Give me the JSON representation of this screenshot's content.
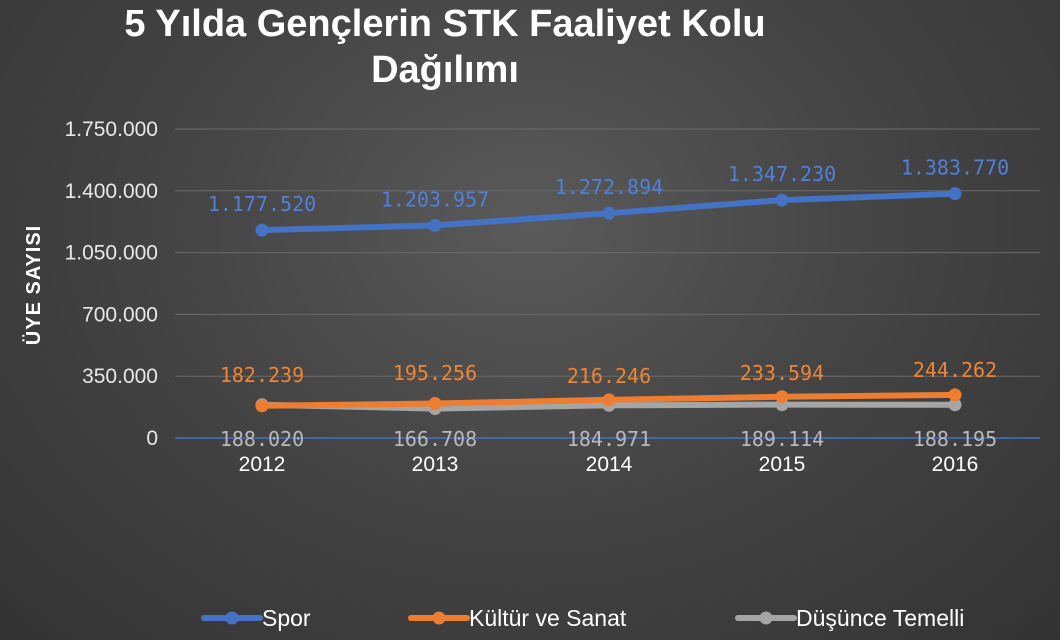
{
  "chart_data": {
    "type": "line",
    "title": "5 Yılda Gençlerin STK Faaliyet Kolu Dağılımı",
    "title_lines": [
      "5 Yılda Gençlerin STK Faaliyet Kolu",
      "Dağılımı"
    ],
    "xlabel": "",
    "ylabel": "ÜYE SAYISI",
    "categories": [
      "2012",
      "2013",
      "2014",
      "2015",
      "2016"
    ],
    "ylim": [
      0,
      1750000
    ],
    "yticks": [
      0,
      350000,
      700000,
      1050000,
      1400000,
      1750000
    ],
    "ytick_labels": [
      "0",
      "350.000",
      "700.000",
      "1.050.000",
      "1.400.000",
      "1.750.000"
    ],
    "grid": true,
    "legend_position": "bottom",
    "series": [
      {
        "name": "Spor",
        "color": "#4472c4",
        "values": [
          1177520,
          1203957,
          1272894,
          1347230,
          1383770
        ],
        "labels": [
          "1.177.520",
          "1.203.957",
          "1.272.894",
          "1.347.230",
          "1.383.770"
        ]
      },
      {
        "name": "Kültür ve Sanat",
        "color": "#ed7d31",
        "values": [
          182239,
          195256,
          216246,
          233594,
          244262
        ],
        "labels": [
          "182.239",
          "195.256",
          "216.246",
          "233.594",
          "244.262"
        ]
      },
      {
        "name": "Düşünce Temelli",
        "color": "#a5a5a5",
        "values": [
          188020,
          166708,
          184971,
          189114,
          188195
        ],
        "labels": [
          "188.020",
          "166.708",
          "184.971",
          "189.114",
          "188.195"
        ]
      }
    ]
  }
}
